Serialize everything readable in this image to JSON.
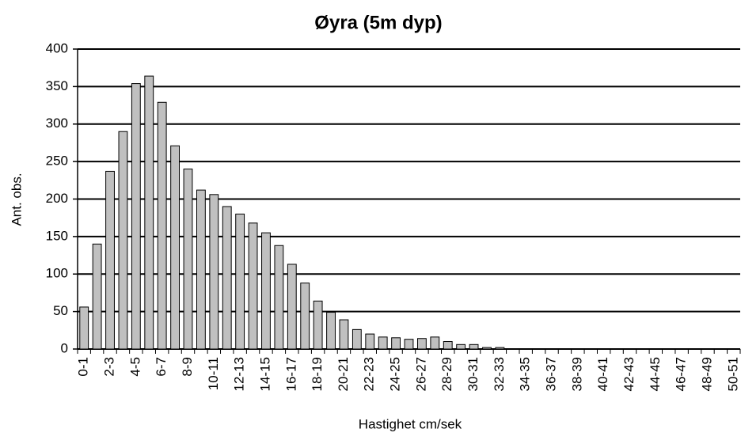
{
  "chart_data": {
    "type": "bar",
    "title": "Øyra (5m dyp)",
    "x_label": "Hastighet cm/sek",
    "y_label": "Ant. obs.",
    "categories": [
      "0-1",
      null,
      "2-3",
      null,
      "4-5",
      null,
      "6-7",
      null,
      "8-9",
      null,
      "10-11",
      null,
      "12-13",
      null,
      "14-15",
      null,
      "16-17",
      null,
      "18-19",
      null,
      "20-21",
      null,
      "22-23",
      null,
      "24-25",
      null,
      "26-27",
      null,
      "28-29",
      null,
      "30-31",
      null,
      "32-33",
      null,
      "34-35",
      null,
      "36-37",
      null,
      "38-39",
      null,
      "40-41",
      null,
      "42-43",
      null,
      "44-45",
      null,
      "46-47",
      null,
      "48-49",
      null,
      "50-51"
    ],
    "values": [
      56,
      140,
      237,
      290,
      354,
      364,
      329,
      271,
      240,
      212,
      206,
      190,
      180,
      168,
      155,
      138,
      113,
      88,
      64,
      49,
      39,
      26,
      20,
      16,
      15,
      13,
      14,
      16,
      10,
      6,
      6,
      2,
      2,
      0,
      0,
      0,
      0,
      0,
      0,
      0,
      0,
      0,
      0,
      0,
      0,
      0,
      0,
      0,
      0,
      0,
      0
    ],
    "color": "#c0c0c0",
    "ylim": [
      0,
      400
    ],
    "yticks": [
      0,
      50,
      100,
      150,
      200,
      250,
      300,
      350,
      400
    ],
    "grid": true
  }
}
